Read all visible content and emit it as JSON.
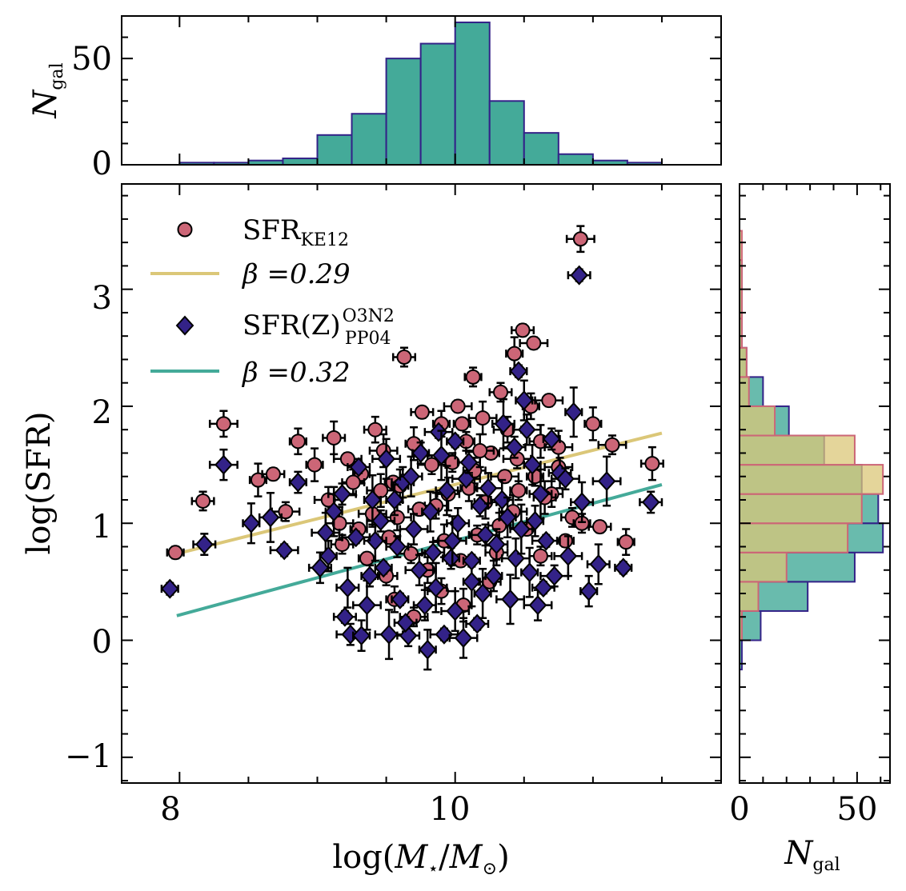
{
  "chart_data": {
    "type": "scatter",
    "main": {
      "xlabel": {
        "pre": "log(",
        "M": "M",
        "star": "⋆",
        "slash": "/",
        "Msun": "M",
        "sun": "⊙",
        "post": ")"
      },
      "ylabel": "log(SFR)",
      "xlim": [
        7.58,
        11.93
      ],
      "ylim": [
        -1.22,
        3.9
      ],
      "xticks": [
        8,
        10
      ],
      "xtick_labels": [
        "8",
        "10"
      ],
      "yticks": [
        -1,
        0,
        1,
        2,
        3
      ],
      "ytick_labels": [
        "−1",
        "0",
        "1",
        "2",
        "3"
      ],
      "legend": [
        {
          "label_main": "SFR",
          "label_sub": "KE12",
          "label_sup": "",
          "marker": "circle"
        },
        {
          "label_main": "β =0.29",
          "label_sub": "",
          "label_sup": "",
          "marker": "line"
        },
        {
          "label_main": "SFR(Z)",
          "label_sub": "PP04",
          "label_sup": "O3N2",
          "marker": "diamond"
        },
        {
          "label_main": "β =0.32",
          "label_sub": "",
          "label_sup": "",
          "marker": "line"
        }
      ],
      "fit_lines": [
        {
          "name": "β =0.29",
          "color": "#dbc778",
          "x": [
            7.98,
            11.5
          ],
          "y": [
            0.74,
            1.77
          ]
        },
        {
          "name": "β =0.32",
          "color": "#44aa99",
          "x": [
            7.98,
            11.5
          ],
          "y": [
            0.21,
            1.33
          ]
        }
      ],
      "series": [
        {
          "name": "SFR_KE12",
          "marker": "circle",
          "color": "#cc6677",
          "points": [
            [
              7.97,
              0.75
            ],
            [
              8.17,
              1.19
            ],
            [
              8.32,
              1.85
            ],
            [
              8.57,
              1.37
            ],
            [
              8.68,
              1.42
            ],
            [
              8.77,
              1.1
            ],
            [
              8.86,
              1.7
            ],
            [
              9.12,
              1.73
            ],
            [
              9.22,
              1.55
            ],
            [
              9.32,
              1.42
            ],
            [
              9.42,
              1.8
            ],
            [
              9.48,
              1.62
            ],
            [
              9.55,
              1.35
            ],
            [
              9.63,
              2.42
            ],
            [
              9.58,
              1.05
            ],
            [
              9.7,
              1.68
            ],
            [
              9.76,
              1.95
            ],
            [
              9.83,
              1.5
            ],
            [
              9.9,
              1.85
            ],
            [
              9.95,
              1.25
            ],
            [
              10.02,
              2.0
            ],
            [
              10.08,
              1.7
            ],
            [
              10.14,
              1.45
            ],
            [
              10.2,
              1.9
            ],
            [
              10.26,
              1.6
            ],
            [
              10.33,
              2.12
            ],
            [
              10.38,
              1.8
            ],
            [
              10.43,
              2.45
            ],
            [
              10.49,
              2.65
            ],
            [
              10.45,
              1.55
            ],
            [
              10.55,
              2.0
            ],
            [
              10.62,
              1.7
            ],
            [
              10.68,
              2.05
            ],
            [
              10.58,
              1.4
            ],
            [
              10.7,
              1.25
            ],
            [
              10.75,
              1.65
            ],
            [
              10.8,
              0.85
            ],
            [
              10.85,
              1.05
            ],
            [
              10.91,
              3.43
            ],
            [
              11.0,
              1.85
            ],
            [
              11.05,
              0.97
            ],
            [
              11.14,
              1.67
            ],
            [
              11.24,
              0.84
            ],
            [
              11.43,
              1.51
            ],
            [
              10.57,
              2.54
            ],
            [
              10.13,
              2.25
            ],
            [
              9.86,
              1.15
            ],
            [
              9.46,
              1.28
            ],
            [
              9.3,
              0.95
            ],
            [
              9.18,
              0.82
            ],
            [
              9.08,
              1.2
            ],
            [
              8.98,
              1.5
            ],
            [
              9.52,
              0.88
            ],
            [
              9.68,
              0.74
            ],
            [
              9.8,
              0.6
            ],
            [
              9.92,
              0.85
            ],
            [
              10.04,
              0.68
            ],
            [
              10.16,
              0.9
            ],
            [
              10.3,
              0.75
            ],
            [
              10.42,
              1.1
            ],
            [
              10.52,
              0.95
            ],
            [
              10.62,
              0.72
            ],
            [
              9.4,
              1.08
            ],
            [
              9.6,
              1.32
            ],
            [
              9.74,
              1.12
            ],
            [
              9.98,
              1.52
            ],
            [
              10.1,
              1.3
            ],
            [
              10.22,
              1.18
            ],
            [
              10.36,
              1.4
            ],
            [
              10.46,
              1.28
            ],
            [
              9.26,
              1.35
            ],
            [
              9.16,
              1.0
            ],
            [
              9.36,
              0.7
            ],
            [
              9.5,
              0.55
            ],
            [
              9.9,
              0.42
            ],
            [
              10.06,
              0.3
            ],
            [
              10.25,
              0.5
            ],
            [
              9.7,
              0.2
            ],
            [
              9.56,
              0.35
            ],
            [
              10.65,
              1.22
            ],
            [
              10.75,
              1.48
            ],
            [
              10.92,
              1.0
            ],
            [
              10.32,
              0.98
            ],
            [
              10.18,
              1.62
            ],
            [
              10.05,
              1.85
            ]
          ]
        },
        {
          "name": "SFR(Z)_PP04_O3N2",
          "marker": "diamond",
          "color": "#332288",
          "points": [
            [
              7.93,
              0.44
            ],
            [
              8.18,
              0.82
            ],
            [
              8.32,
              1.5
            ],
            [
              8.52,
              1.0
            ],
            [
              8.66,
              1.05
            ],
            [
              8.76,
              0.77
            ],
            [
              8.86,
              1.35
            ],
            [
              9.02,
              0.62
            ],
            [
              9.06,
              0.92
            ],
            [
              9.12,
              1.1
            ],
            [
              9.2,
              0.2
            ],
            [
              9.24,
              0.05
            ],
            [
              9.32,
              0.04
            ],
            [
              9.42,
              0.85
            ],
            [
              9.52,
              0.05
            ],
            [
              9.6,
              0.35
            ],
            [
              9.66,
              0.04
            ],
            [
              9.74,
              0.6
            ],
            [
              9.8,
              -0.08
            ],
            [
              9.86,
              0.45
            ],
            [
              9.92,
              0.05
            ],
            [
              9.97,
              0.7
            ],
            [
              10.02,
              1.0
            ],
            [
              10.06,
              0.02
            ],
            [
              10.12,
              0.5
            ],
            [
              10.16,
              0.14
            ],
            [
              10.22,
              0.9
            ],
            [
              10.28,
              0.55
            ],
            [
              10.34,
              1.2
            ],
            [
              10.4,
              0.35
            ],
            [
              10.46,
              2.3
            ],
            [
              10.43,
              1.65
            ],
            [
              10.52,
              1.8
            ],
            [
              10.56,
              1.5
            ],
            [
              10.62,
              1.25
            ],
            [
              10.66,
              0.85
            ],
            [
              10.7,
              1.72
            ],
            [
              10.76,
              1.43
            ],
            [
              10.82,
              0.72
            ],
            [
              10.86,
              1.95
            ],
            [
              10.9,
              3.12
            ],
            [
              10.8,
              1.38
            ],
            [
              10.97,
              0.42
            ],
            [
              11.04,
              0.65
            ],
            [
              11.1,
              1.36
            ],
            [
              11.22,
              0.62
            ],
            [
              11.42,
              1.18
            ],
            [
              10.6,
              0.3
            ],
            [
              10.5,
              2.05
            ],
            [
              10.35,
              1.85
            ],
            [
              9.88,
              1.78
            ],
            [
              9.75,
              1.6
            ],
            [
              9.62,
              1.35
            ],
            [
              9.5,
              1.55
            ],
            [
              9.4,
              1.2
            ],
            [
              9.3,
              1.48
            ],
            [
              9.18,
              1.25
            ],
            [
              9.08,
              0.72
            ],
            [
              9.22,
              0.45
            ],
            [
              9.36,
              0.3
            ],
            [
              9.48,
              0.62
            ],
            [
              9.58,
              0.8
            ],
            [
              9.7,
              0.95
            ],
            [
              9.82,
              1.1
            ],
            [
              9.94,
              1.28
            ],
            [
              10.08,
              1.38
            ],
            [
              10.18,
              1.15
            ],
            [
              10.3,
              0.82
            ],
            [
              10.44,
              0.7
            ],
            [
              10.54,
              0.58
            ],
            [
              10.64,
              0.45
            ],
            [
              9.46,
              1.02
            ],
            [
              9.56,
              1.2
            ],
            [
              9.68,
              1.4
            ],
            [
              9.9,
              1.58
            ],
            [
              10.0,
              1.7
            ],
            [
              10.1,
              1.52
            ],
            [
              10.24,
              1.3
            ],
            [
              10.38,
              1.05
            ],
            [
              10.48,
              0.95
            ],
            [
              9.28,
              0.88
            ],
            [
              9.38,
              0.55
            ],
            [
              9.78,
              0.3
            ],
            [
              10.0,
              0.25
            ],
            [
              10.2,
              0.4
            ],
            [
              9.64,
              0.15
            ],
            [
              10.72,
              0.55
            ],
            [
              10.58,
              1.02
            ],
            [
              10.92,
              1.18
            ],
            [
              9.98,
              0.85
            ],
            [
              10.12,
              0.68
            ],
            [
              9.84,
              0.75
            ]
          ]
        }
      ]
    },
    "top_hist": {
      "ylabel_main": "N",
      "ylabel_sub": "gal",
      "ylim": [
        0,
        70
      ],
      "yticks": [
        0,
        50
      ],
      "ytick_labels": [
        "0",
        "50"
      ],
      "color": "#44aa99",
      "edgecolor": "#332288",
      "bin_edges": [
        8.0,
        8.25,
        8.5,
        8.75,
        9.0,
        9.25,
        9.5,
        9.75,
        10.0,
        10.25,
        10.5,
        10.75,
        11.0,
        11.25,
        11.5
      ],
      "counts": [
        1,
        1,
        2,
        3,
        14,
        24,
        50,
        57,
        67,
        30,
        15,
        5,
        2,
        1
      ]
    },
    "side_hist": {
      "xlabel_main": "N",
      "xlabel_sub": "gal",
      "xlim": [
        0,
        64
      ],
      "xticks": [
        0,
        50
      ],
      "xtick_labels": [
        "0",
        "50"
      ],
      "series": [
        {
          "name": "SFR(Z)_PP04_O3N2",
          "color": "#44aa99",
          "edgecolor": "#332288",
          "opacity": 0.8,
          "bin_edges": [
            -0.25,
            0.0,
            0.25,
            0.5,
            0.75,
            1.0,
            1.25,
            1.5,
            1.75,
            2.0,
            2.25,
            2.5,
            3.0,
            3.25
          ],
          "counts": [
            1,
            9,
            29,
            49,
            61,
            59,
            52,
            36,
            21,
            10,
            3,
            1,
            1
          ]
        },
        {
          "name": "SFR_KE12",
          "color": "#dbc778",
          "edgecolor": "#cc6677",
          "opacity": 0.75,
          "bin_edges": [
            0.0,
            0.25,
            0.5,
            0.75,
            1.0,
            1.25,
            1.5,
            1.75,
            2.0,
            2.25,
            2.5,
            2.75,
            3.25,
            3.5
          ],
          "counts": [
            1,
            8,
            20,
            46,
            52,
            61,
            49,
            15,
            4,
            3,
            1,
            1,
            1
          ]
        }
      ]
    }
  }
}
